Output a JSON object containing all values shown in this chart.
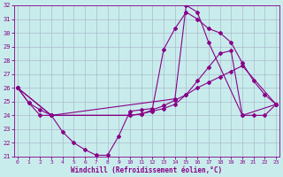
{
  "xlabel": "Windchill (Refroidissement éolien,°C)",
  "bg_color": "#c8ecec",
  "line_color": "#880088",
  "grid_color": "#aabbcc",
  "xlim": [
    -0.3,
    23.3
  ],
  "ylim": [
    21,
    32
  ],
  "yticks": [
    21,
    22,
    23,
    24,
    25,
    26,
    27,
    28,
    29,
    30,
    31,
    32
  ],
  "xticks": [
    0,
    1,
    2,
    3,
    4,
    5,
    6,
    7,
    8,
    9,
    10,
    11,
    12,
    13,
    14,
    15,
    16,
    17,
    18,
    19,
    20,
    21,
    22,
    23
  ],
  "line1_x": [
    0,
    1,
    2,
    3,
    4,
    5,
    6,
    7,
    8,
    9,
    10,
    11,
    12,
    13,
    14,
    15,
    16,
    17,
    18,
    19,
    20,
    21,
    22,
    23
  ],
  "line1_y": [
    26.0,
    24.9,
    24.0,
    24.0,
    22.8,
    22.0,
    21.5,
    21.1,
    21.1,
    22.5,
    24.3,
    24.4,
    24.5,
    28.8,
    30.3,
    31.5,
    31.0,
    30.3,
    30.0,
    29.3,
    27.8,
    26.5,
    25.5,
    24.8
  ],
  "line2_x": [
    0,
    1,
    2,
    3,
    10,
    11,
    12,
    13,
    14,
    15,
    16,
    17,
    18,
    19,
    20,
    23
  ],
  "line2_y": [
    26.0,
    24.9,
    24.4,
    24.0,
    24.0,
    24.1,
    24.4,
    24.7,
    25.1,
    25.5,
    26.0,
    26.4,
    26.8,
    27.2,
    27.6,
    24.8
  ],
  "line3_x": [
    0,
    3,
    14,
    15,
    16,
    17,
    20,
    23
  ],
  "line3_y": [
    26.0,
    24.0,
    25.2,
    32.0,
    31.5,
    29.3,
    24.0,
    24.8
  ],
  "line4_x": [
    0,
    3,
    10,
    11,
    12,
    13,
    14,
    15,
    16,
    17,
    18,
    19,
    20,
    21,
    22,
    23
  ],
  "line4_y": [
    26.0,
    24.0,
    24.0,
    24.1,
    24.3,
    24.5,
    24.8,
    25.5,
    26.5,
    27.5,
    28.5,
    28.7,
    24.0,
    24.0,
    24.0,
    24.8
  ]
}
